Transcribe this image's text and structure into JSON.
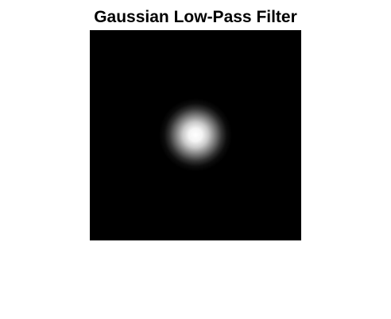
{
  "figure": {
    "title": "Gaussian Low-Pass Filter"
  },
  "image": {
    "description_kind": "gaussian-filter-magnitude",
    "colormap": "gray",
    "background_color": "#000000",
    "peak_color": "#ffffff"
  }
}
